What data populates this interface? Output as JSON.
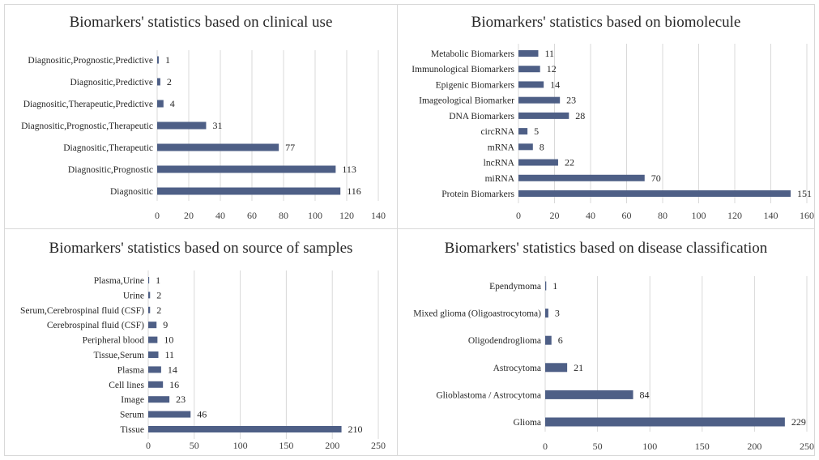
{
  "chart_data": [
    {
      "type": "bar",
      "orientation": "horizontal",
      "title": "Biomarkers' statistics based on clinical use",
      "categories": [
        "Diagnositic,Prognostic,Predictive",
        "Diagnositic,Predictive",
        "Diagnositic,Therapeutic,Predictive",
        "Diagnositic,Prognostic,Therapeutic",
        "Diagnositic,Therapeutic",
        "Diagnositic,Prognostic",
        "Diagnositic"
      ],
      "values": [
        1,
        2,
        4,
        31,
        77,
        113,
        116
      ],
      "xlim": [
        0,
        140
      ],
      "ticks": [
        0,
        20,
        40,
        60,
        80,
        100,
        120,
        140
      ],
      "grid": true,
      "legend": "none"
    },
    {
      "type": "bar",
      "orientation": "horizontal",
      "title": "Biomarkers' statistics based on biomolecule",
      "categories": [
        "Metabolic Biomarkers",
        "Immunological Biomarkers",
        "Epigenic Biomarkers",
        "Imageological Biomarker",
        "DNA Biomarkers",
        "circRNA",
        "mRNA",
        "lncRNA",
        "miRNA",
        "Protein Biomarkers"
      ],
      "values": [
        11,
        12,
        14,
        23,
        28,
        5,
        8,
        22,
        70,
        151
      ],
      "xlim": [
        0,
        160
      ],
      "ticks": [
        0,
        20,
        40,
        60,
        80,
        100,
        120,
        140,
        160
      ],
      "grid": true,
      "legend": "none"
    },
    {
      "type": "bar",
      "orientation": "horizontal",
      "title": "Biomarkers' statistics based on source of samples",
      "categories": [
        "Plasma,Urine",
        "Urine",
        "Serum,Cerebrospinal fluid (CSF)",
        "Cerebrospinal fluid (CSF)",
        "Peripheral blood",
        "Tissue,Serum",
        "Plasma",
        "Cell lines",
        "Image",
        "Serum",
        "Tissue"
      ],
      "values": [
        1,
        2,
        2,
        9,
        10,
        11,
        14,
        16,
        23,
        46,
        210
      ],
      "xlim": [
        0,
        250
      ],
      "ticks": [
        0,
        50,
        100,
        150,
        200,
        250
      ],
      "grid": true,
      "legend": "none"
    },
    {
      "type": "bar",
      "orientation": "horizontal",
      "title": "Biomarkers' statistics based on disease classification",
      "categories": [
        "Ependymoma",
        "Mixed glioma (Oligoastrocytoma)",
        "Oligodendroglioma",
        "Astrocytoma",
        "Glioblastoma / Astrocytoma",
        "Glioma"
      ],
      "values": [
        1,
        3,
        6,
        21,
        84,
        229
      ],
      "xlim": [
        0,
        250
      ],
      "ticks": [
        0,
        50,
        100,
        150,
        200,
        250
      ],
      "grid": true,
      "legend": "none"
    }
  ],
  "colors": {
    "bar": "#4e5f86",
    "grid": "#d9d9d9",
    "text": "#262626",
    "axis_text": "#404040"
  }
}
